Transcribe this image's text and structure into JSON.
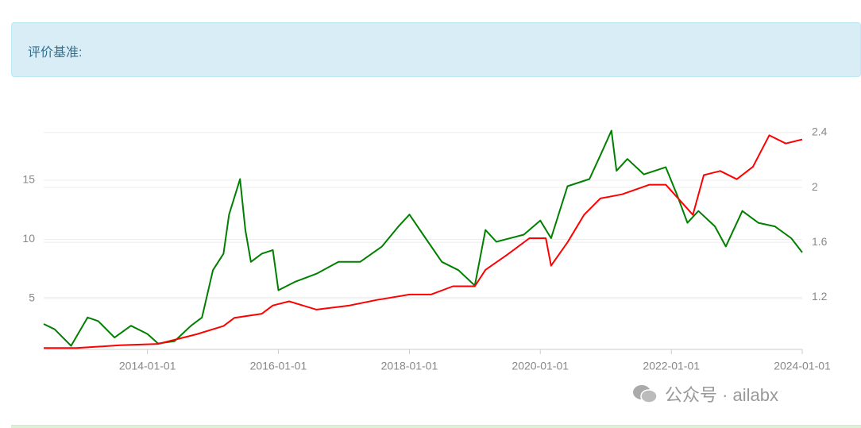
{
  "header": {
    "title": "评价基准:"
  },
  "watermark": "公众号 · ailabx",
  "chart_data": {
    "type": "line",
    "xlim": [
      "2012-06-01",
      "2024-01-01"
    ],
    "xticks": [
      "2014-01-01",
      "2016-01-01",
      "2018-01-01",
      "2020-01-01",
      "2022-01-01",
      "2024-01-01"
    ],
    "ylim": [
      0.7,
      19.5
    ],
    "yticks": [
      5,
      10,
      15
    ],
    "y2lim": [
      0.82,
      2.44
    ],
    "y2ticks": [
      1.2,
      1.6,
      2,
      2.4
    ],
    "grid": true,
    "series": [
      {
        "color": "#008000",
        "axis": "y",
        "x": [
          "2012-06-01",
          "2012-08-01",
          "2012-11-01",
          "2013-02-01",
          "2013-04-01",
          "2013-07-01",
          "2013-10-01",
          "2014-01-01",
          "2014-03-01",
          "2014-06-01",
          "2014-09-01",
          "2014-11-01",
          "2015-01-01",
          "2015-03-01",
          "2015-04-01",
          "2015-06-01",
          "2015-07-01",
          "2015-08-01",
          "2015-10-01",
          "2015-12-01",
          "2016-01-01",
          "2016-04-01",
          "2016-08-01",
          "2016-12-01",
          "2017-04-01",
          "2017-08-01",
          "2017-11-01",
          "2018-01-01",
          "2018-04-01",
          "2018-07-01",
          "2018-10-01",
          "2019-01-01",
          "2019-03-01",
          "2019-05-01",
          "2019-10-01",
          "2020-01-01",
          "2020-03-01",
          "2020-06-01",
          "2020-10-01",
          "2020-12-01",
          "2021-02-01",
          "2021-03-01",
          "2021-05-01",
          "2021-08-01",
          "2021-12-01",
          "2022-02-01",
          "2022-04-01",
          "2022-06-01",
          "2022-09-01",
          "2022-11-01",
          "2023-02-01",
          "2023-05-01",
          "2023-08-01",
          "2023-11-01",
          "2024-01-01"
        ],
        "values": [
          2.85,
          2.4,
          1.0,
          3.4,
          3.1,
          1.7,
          2.7,
          2.0,
          1.2,
          1.4,
          2.7,
          3.4,
          7.4,
          8.8,
          12.1,
          15.1,
          10.8,
          8.1,
          8.8,
          9.1,
          5.7,
          6.4,
          7.1,
          8.1,
          8.1,
          9.4,
          11.1,
          12.1,
          10.1,
          8.1,
          7.4,
          6.1,
          10.8,
          9.8,
          10.4,
          11.6,
          10.1,
          14.5,
          15.1,
          17.1,
          19.2,
          15.8,
          16.8,
          15.5,
          16.1,
          13.8,
          11.4,
          12.4,
          11.1,
          9.4,
          12.4,
          11.4,
          11.1,
          10.1,
          8.9
        ]
      },
      {
        "color": "#ff0000",
        "axis": "y2",
        "x": [
          "2012-06-01",
          "2012-12-01",
          "2013-08-01",
          "2014-03-01",
          "2014-10-01",
          "2015-03-01",
          "2015-05-01",
          "2015-10-01",
          "2015-12-01",
          "2016-03-01",
          "2016-08-01",
          "2017-02-01",
          "2017-07-01",
          "2018-01-01",
          "2018-05-01",
          "2018-09-01",
          "2019-01-01",
          "2019-03-01",
          "2019-07-01",
          "2019-11-01",
          "2020-02-01",
          "2020-03-01",
          "2020-06-01",
          "2020-09-01",
          "2020-12-01",
          "2021-04-01",
          "2021-09-01",
          "2021-12-01",
          "2022-03-01",
          "2022-05-01",
          "2022-07-01",
          "2022-10-01",
          "2023-01-01",
          "2023-04-01",
          "2023-07-01",
          "2023-10-01",
          "2024-01-01"
        ],
        "values": [
          0.83,
          0.83,
          0.85,
          0.86,
          0.93,
          0.99,
          1.05,
          1.08,
          1.14,
          1.17,
          1.11,
          1.14,
          1.18,
          1.22,
          1.22,
          1.28,
          1.28,
          1.4,
          1.51,
          1.63,
          1.63,
          1.43,
          1.6,
          1.8,
          1.92,
          1.95,
          2.02,
          2.02,
          1.89,
          1.8,
          2.09,
          2.12,
          2.06,
          2.15,
          2.38,
          2.32,
          2.35
        ]
      }
    ]
  }
}
